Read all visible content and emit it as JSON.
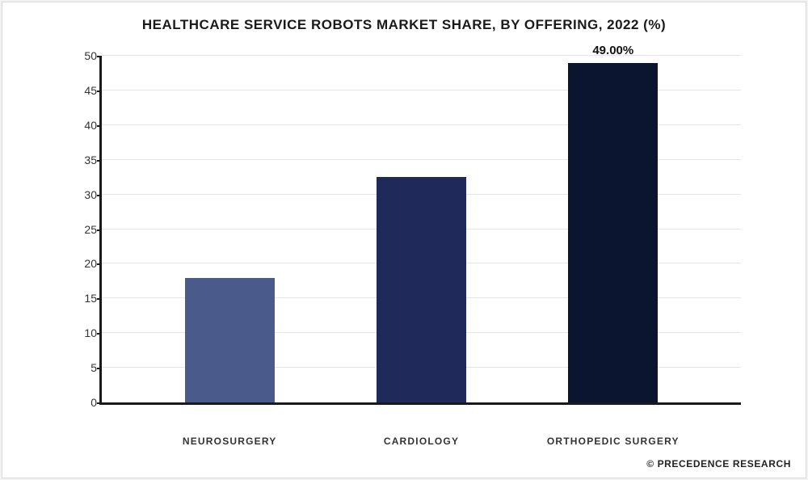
{
  "chart": {
    "type": "bar",
    "title": "HEALTHCARE SERVICE ROBOTS MARKET SHARE, BY OFFERING, 2022 (%)",
    "title_fontsize": 17,
    "background_color": "#ffffff",
    "frame_border_color": "#d9d9d9",
    "axis_color": "#1a1a1a",
    "grid_color": "#e5e5e5",
    "ylim": [
      0,
      50
    ],
    "ytick_step": 5,
    "yticks": [
      0,
      5,
      10,
      15,
      20,
      25,
      30,
      35,
      40,
      45,
      50
    ],
    "ytick_fontsize": 14,
    "xtick_fontsize": 12,
    "bar_width_pct": 14,
    "categories": [
      "NEUROSURGERY",
      "CARDIOLOGY",
      "ORTHOPEDIC SURGERY"
    ],
    "x_positions_pct": [
      20,
      50,
      80
    ],
    "values": [
      18,
      32.5,
      49
    ],
    "bar_colors": [
      "#4a5a8a",
      "#1f2a5a",
      "#0b1530"
    ],
    "show_value_label": [
      false,
      false,
      true
    ],
    "value_labels": [
      "",
      "",
      "49.00%"
    ],
    "value_label_fontsize": 15
  },
  "footer": {
    "text": "© PRECEDENCE RESEARCH",
    "fontsize": 12
  }
}
